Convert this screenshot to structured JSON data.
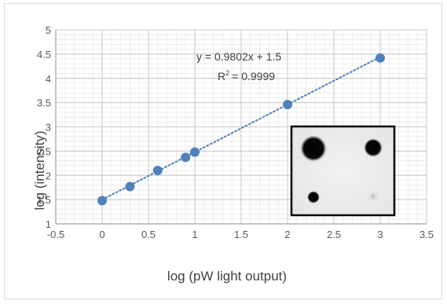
{
  "chart_data": {
    "type": "scatter",
    "title": "",
    "xlabel": "log (pW light output)",
    "ylabel": "log (intensity)",
    "xlim": [
      -0.5,
      3.5
    ],
    "ylim": [
      1,
      5
    ],
    "x_ticks": [
      "-0.5",
      "0",
      "0.5",
      "1",
      "1.5",
      "2",
      "2.5",
      "3",
      "3.5"
    ],
    "y_ticks": [
      "1",
      "1.5",
      "2",
      "2.5",
      "3",
      "3.5",
      "4",
      "4.5",
      "5"
    ],
    "grid": true,
    "legend": "none",
    "series": [
      {
        "points": [
          {
            "x": 0,
            "y": 1.48
          },
          {
            "x": 0.3,
            "y": 1.77
          },
          {
            "x": 0.6,
            "y": 2.1
          },
          {
            "x": 0.9,
            "y": 2.37
          },
          {
            "x": 1.0,
            "y": 2.48
          },
          {
            "x": 2.0,
            "y": 3.46
          },
          {
            "x": 3.0,
            "y": 4.42
          }
        ],
        "color": "#4f81bd"
      }
    ],
    "trendline": {
      "slope": 0.9802,
      "intercept": 1.5,
      "equation": "y = 0.9802x  + 1.5",
      "r2_label": "R",
      "r2_value": "= 0.9999",
      "color": "#4f81bd",
      "style": "dotted"
    },
    "annotations": [
      {
        "kind": "inset-image",
        "content": "blot with four dark spots of decreasing size"
      }
    ]
  }
}
